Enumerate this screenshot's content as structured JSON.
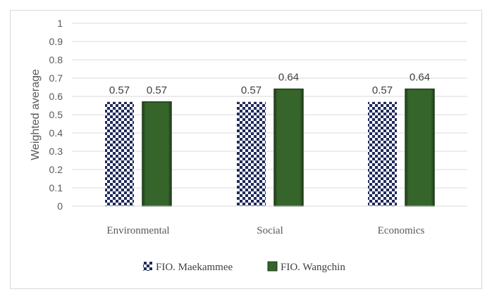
{
  "chart_data": {
    "type": "bar",
    "categories": [
      "Environmental",
      "Social",
      "Economics"
    ],
    "series": [
      {
        "name": "FIO. Maekammee",
        "values": [
          0.57,
          0.57,
          0.57
        ],
        "pattern": "checkerboard",
        "color": "#1f2a5c"
      },
      {
        "name": "FIO. Wangchin",
        "values": [
          0.57,
          0.64,
          0.64
        ],
        "color": "#2f5a26"
      }
    ],
    "data_labels": [
      [
        "0.57",
        "0.57",
        "0.57"
      ],
      [
        "0.57",
        "0.64",
        "0.64"
      ]
    ],
    "yticks": [
      "0",
      "0.1",
      "0.2",
      "0.3",
      "0.4",
      "0.5",
      "0.6",
      "0.7",
      "0.8",
      "0.9",
      "1"
    ],
    "ylabel": "Weighted average",
    "xlabel": "",
    "title": "",
    "ylim": [
      0,
      1
    ],
    "grid": true,
    "legend_position": "bottom"
  }
}
